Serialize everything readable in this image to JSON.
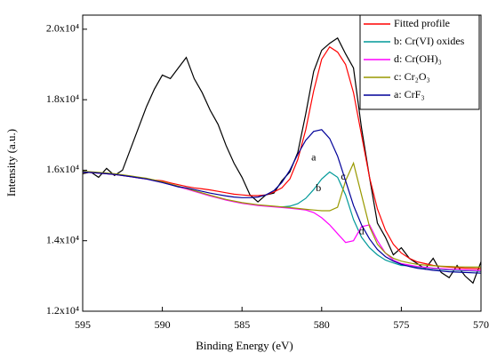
{
  "chart_data": {
    "type": "line",
    "xlabel": "Binding Energy (eV)",
    "ylabel": "Intensity (a.u.)",
    "xlim": [
      595,
      570
    ],
    "xticks": [
      595,
      590,
      585,
      580,
      575,
      570
    ],
    "ylim": [
      12000,
      20400
    ],
    "yticks": [
      {
        "value": 12000,
        "label": "1.2x10⁴"
      },
      {
        "value": 14000,
        "label": "1.4x10⁴"
      },
      {
        "value": 16000,
        "label": "1.6x10⁴"
      },
      {
        "value": 18000,
        "label": "1.8x10⁴"
      },
      {
        "value": 20000,
        "label": "2.0x10⁴"
      }
    ],
    "legend": "upper right",
    "x": [
      595,
      594.5,
      594,
      593.5,
      593,
      592.5,
      592,
      591.5,
      591,
      590.5,
      590,
      589.5,
      589,
      588.5,
      588,
      587.5,
      587,
      586.5,
      586,
      585.5,
      585,
      584.5,
      584,
      583.5,
      583,
      582.5,
      582,
      581.5,
      581,
      580.5,
      580,
      579.5,
      579,
      578.5,
      578,
      577.5,
      577,
      576.5,
      576,
      575.5,
      575,
      574.5,
      574,
      573.5,
      573,
      572.5,
      572,
      571.5,
      571,
      570.5,
      570
    ],
    "series": [
      {
        "color": "#000000",
        "values": [
          15900,
          15950,
          15800,
          16050,
          15850,
          16000,
          16600,
          17200,
          17800,
          18300,
          18700,
          18600,
          18900,
          19200,
          18600,
          18200,
          17700,
          17300,
          16700,
          16200,
          15800,
          15300,
          15100,
          15300,
          15350,
          15700,
          15950,
          16500,
          17600,
          18800,
          19400,
          19600,
          19750,
          19300,
          18900,
          17200,
          15800,
          14500,
          14100,
          13600,
          13800,
          13500,
          13350,
          13200,
          13500,
          13100,
          12950,
          13300,
          13000,
          12800,
          13400
        ]
      },
      {
        "name": "Fitted profile",
        "color": "#ff0000",
        "values": [
          15950,
          15935,
          15920,
          15900,
          15880,
          15850,
          15820,
          15785,
          15750,
          15720,
          15700,
          15640,
          15590,
          15540,
          15500,
          15470,
          15440,
          15400,
          15360,
          15320,
          15300,
          15280,
          15280,
          15300,
          15380,
          15500,
          15750,
          16300,
          17150,
          18250,
          19150,
          19500,
          19350,
          19000,
          18200,
          17000,
          15800,
          14900,
          14300,
          13900,
          13650,
          13500,
          13400,
          13350,
          13300,
          13270,
          13250,
          13235,
          13220,
          13210,
          13200
        ]
      },
      {
        "name": "b: Cr(VI) oxides",
        "color": "#009999",
        "values": [
          15960,
          15945,
          15930,
          15910,
          15890,
          15860,
          15830,
          15795,
          15760,
          15710,
          15660,
          15600,
          15540,
          15475,
          15410,
          15345,
          15280,
          15220,
          15160,
          15115,
          15070,
          15040,
          15010,
          14990,
          14970,
          14960,
          14980,
          15050,
          15200,
          15450,
          15750,
          15950,
          15800,
          15300,
          14600,
          14100,
          13800,
          13600,
          13450,
          13370,
          13300,
          13290,
          13250,
          13225,
          13200,
          13185,
          13170,
          13160,
          13150,
          13140,
          13130
        ]
      },
      {
        "name": "d: Cr(OH)₃",
        "color": "#ff00ff",
        "values": [
          15950,
          15935,
          15920,
          15900,
          15880,
          15850,
          15820,
          15785,
          15750,
          15700,
          15650,
          15590,
          15530,
          15465,
          15400,
          15335,
          15270,
          15210,
          15150,
          15105,
          15060,
          15030,
          15000,
          14980,
          14960,
          14940,
          14920,
          14895,
          14870,
          14800,
          14650,
          14450,
          14200,
          13950,
          14000,
          14400,
          14450,
          14000,
          13650,
          13450,
          13350,
          13310,
          13270,
          13245,
          13220,
          13205,
          13190,
          13180,
          13170,
          13160,
          13150
        ]
      },
      {
        "name": "c: Cr₂O₃",
        "color": "#999900",
        "values": [
          15970,
          15955,
          15940,
          15920,
          15900,
          15870,
          15840,
          15805,
          15770,
          15720,
          15670,
          15610,
          15550,
          15485,
          15420,
          15355,
          15290,
          15230,
          15170,
          15125,
          15080,
          15050,
          15020,
          15000,
          14980,
          14960,
          14940,
          14915,
          14890,
          14870,
          14850,
          14850,
          14950,
          15700,
          16200,
          15300,
          14400,
          13900,
          13650,
          13500,
          13420,
          13370,
          13330,
          13310,
          13290,
          13280,
          13270,
          13260,
          13255,
          13250,
          13250
        ]
      },
      {
        "name": "a: CrF₃",
        "color": "#000099",
        "values": [
          15950,
          15935,
          15920,
          15900,
          15880,
          15850,
          15820,
          15785,
          15750,
          15700,
          15650,
          15590,
          15530,
          15500,
          15450,
          15400,
          15350,
          15310,
          15270,
          15240,
          15220,
          15220,
          15240,
          15300,
          15420,
          15650,
          16000,
          16450,
          16850,
          17100,
          17150,
          16900,
          16400,
          15700,
          15000,
          14450,
          14050,
          13750,
          13550,
          13420,
          13330,
          13270,
          13220,
          13190,
          13160,
          13140,
          13120,
          13110,
          13100,
          13090,
          13080
        ]
      }
    ],
    "annotations": [
      {
        "text": "a",
        "x": 580.5,
        "y": 16350
      },
      {
        "text": "b",
        "x": 580.2,
        "y": 15470
      },
      {
        "text": "c",
        "x": 578.65,
        "y": 15800
      },
      {
        "text": "d",
        "x": 577.5,
        "y": 14250
      }
    ]
  }
}
